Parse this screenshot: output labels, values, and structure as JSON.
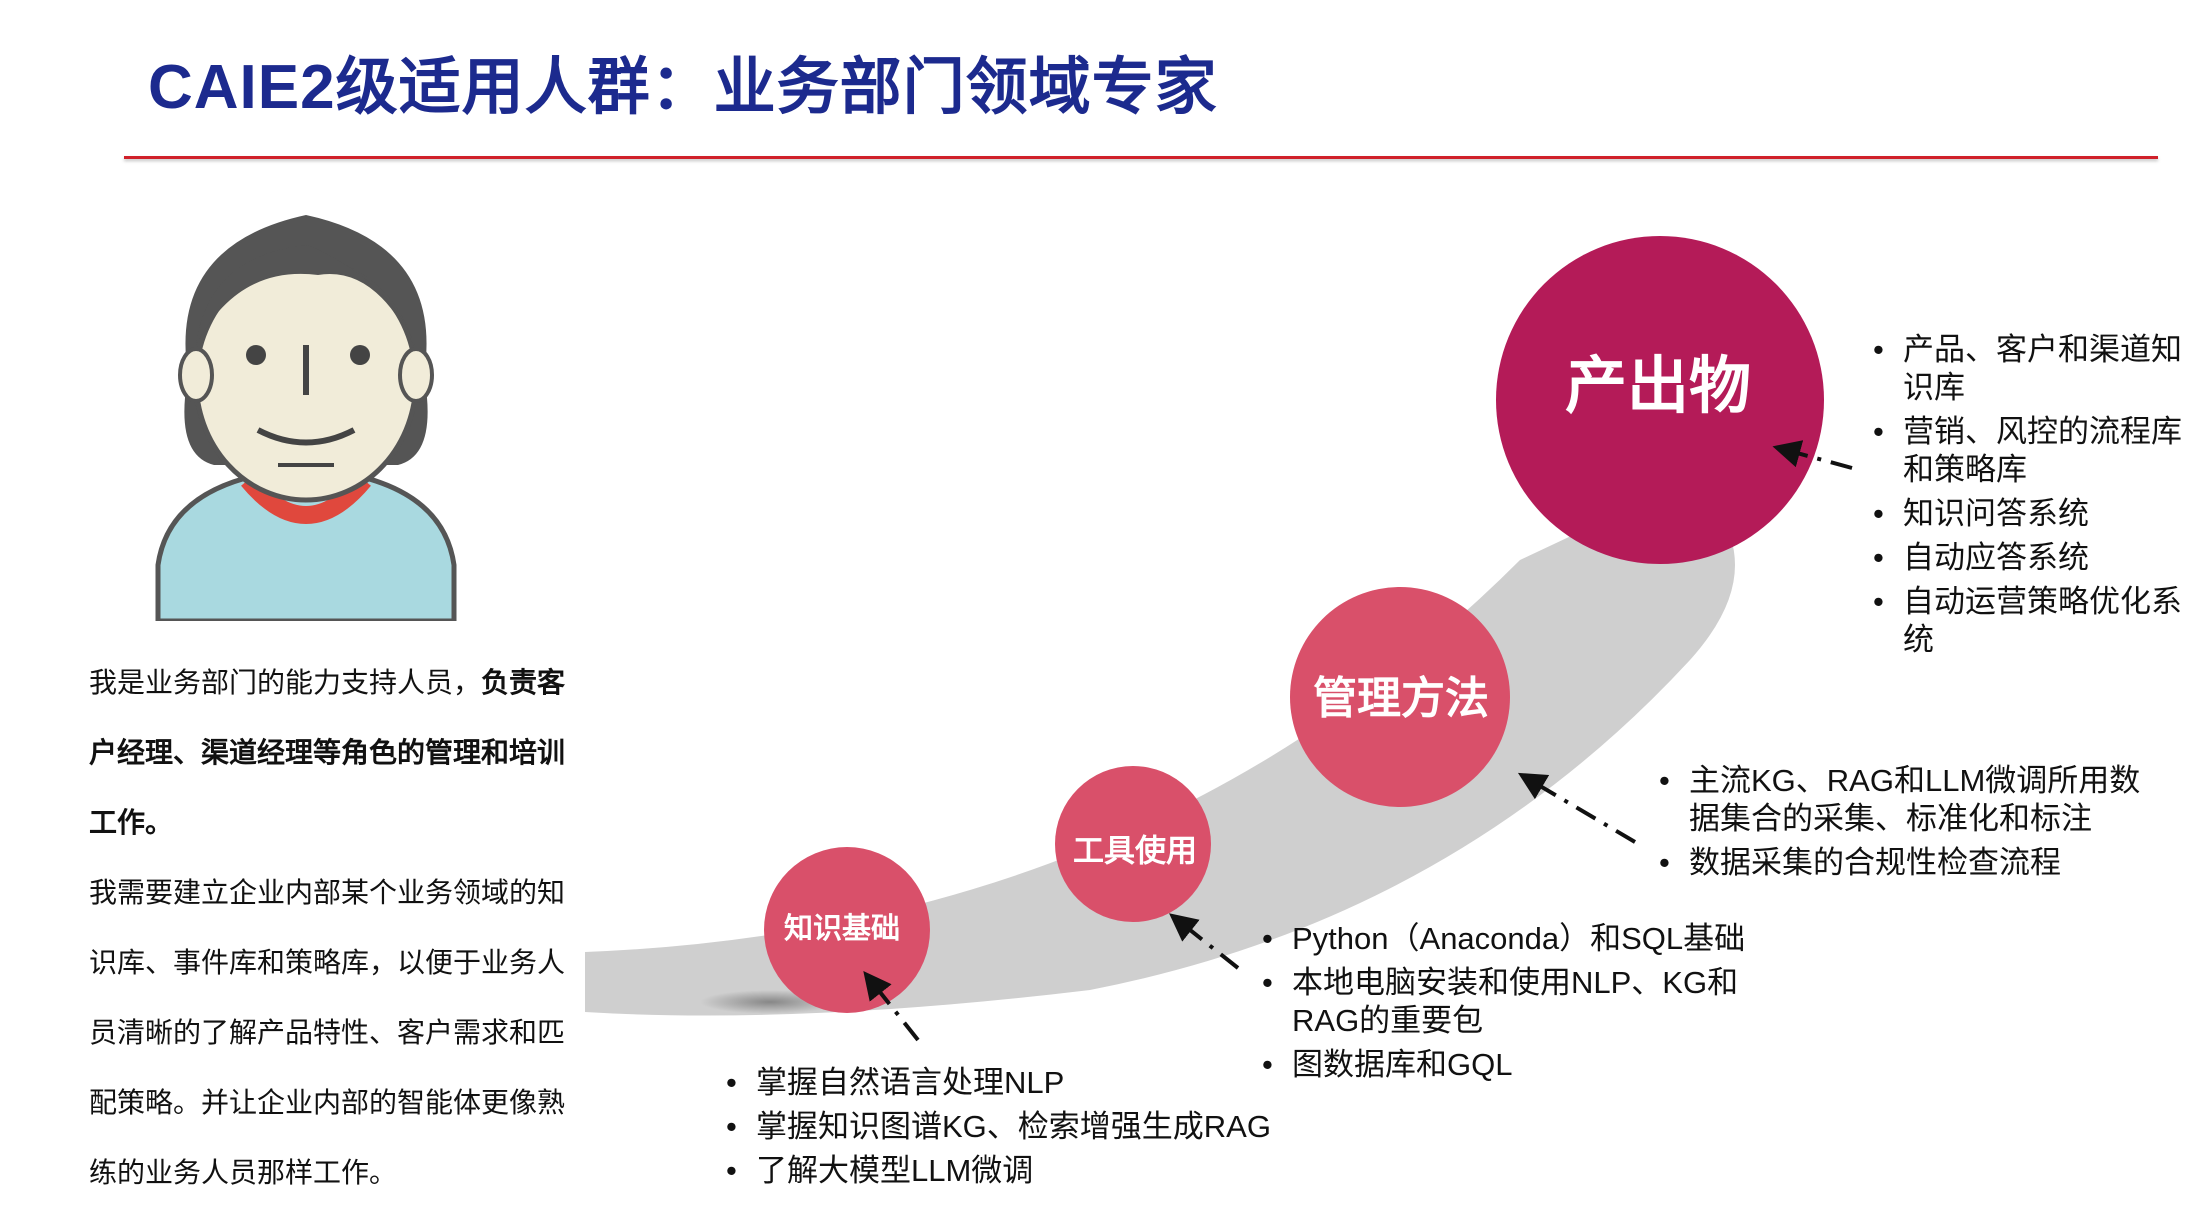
{
  "slide": {
    "title": "CAIE2级适用人群：业务部门领域专家",
    "accent_color": "#d0202a",
    "title_color": "#1c2a8e"
  },
  "persona": {
    "avatar_icon": "cartoon-person-avatar",
    "para1_normal": "我是业务部门的能力支持人员，",
    "para1_bold": "负责客户经理、渠道经理等角色的管理和培训工作。",
    "para2": "我需要建立企业内部某个业务领域的知识库、事件库和策略库，以便于业务人员清晰的了解产品特性、客户需求和匹配策略。并让企业内部的智能体更像熟练的业务人员那样工作。"
  },
  "stages": [
    {
      "label": "知识基础",
      "color": "#d9506a",
      "items": [
        "掌握自然语言处理NLP",
        "掌握知识图谱KG、检索增强生成RAG",
        "了解大模型LLM微调"
      ]
    },
    {
      "label": "工具使用",
      "color": "#d9506a",
      "items": [
        "Python（Anaconda）和SQL基础",
        "本地电脑安装和使用NLP、KG和RAG的重要包",
        "图数据库和GQL"
      ]
    },
    {
      "label": "管理方法",
      "color": "#d9506a",
      "items": [
        "主流KG、RAG和LLM微调所用数据集合的采集、标准化和标注",
        "数据采集的合规性检查流程"
      ]
    },
    {
      "label": "产出物",
      "color": "#b41b58",
      "items": [
        "产品、客户和渠道知识库",
        "营销、风控的流程库和策略库",
        "知识问答系统",
        "自动应答系统",
        "自动运营策略优化系统"
      ]
    }
  ]
}
